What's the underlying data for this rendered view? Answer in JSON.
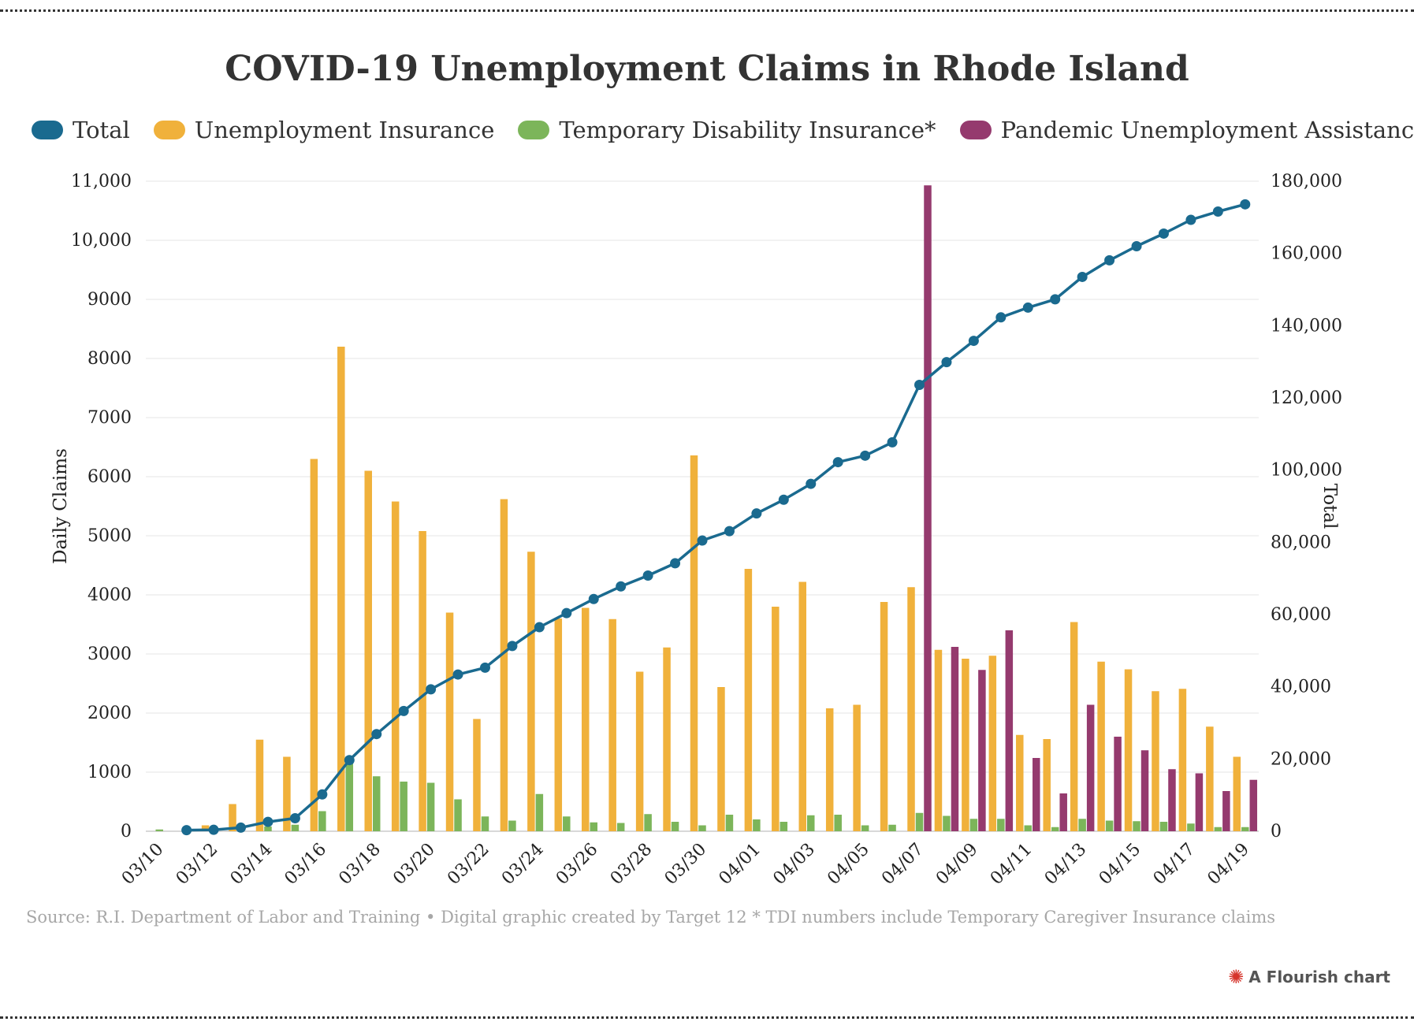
{
  "chart_data": {
    "type": "bar",
    "title": "COVID-19 Unemployment Claims in Rhode Island",
    "ylabel": "Daily Claims",
    "y2label": "Total",
    "ylim": [
      0,
      11000
    ],
    "y2lim": [
      0,
      180000
    ],
    "yticks": [
      "0",
      "1000",
      "2000",
      "3000",
      "4000",
      "5000",
      "6000",
      "7000",
      "8000",
      "9000",
      "10,000",
      "11,000"
    ],
    "y2ticks": [
      "0",
      "20,000",
      "40,000",
      "60,000",
      "80,000",
      "100,000",
      "120,000",
      "140,000",
      "160,000",
      "180,000"
    ],
    "xtick_labels": [
      "03/10",
      "03/12",
      "03/14",
      "03/16",
      "03/18",
      "03/20",
      "03/22",
      "03/24",
      "03/26",
      "03/28",
      "03/30",
      "04/01",
      "04/03",
      "04/05",
      "04/07",
      "04/09",
      "04/11",
      "04/13",
      "04/15",
      "04/17",
      "04/19"
    ],
    "categories": [
      "03/10",
      "03/11",
      "03/12",
      "03/13",
      "03/14",
      "03/15",
      "03/16",
      "03/17",
      "03/18",
      "03/19",
      "03/20",
      "03/21",
      "03/22",
      "03/23",
      "03/24",
      "03/25",
      "03/26",
      "03/27",
      "03/28",
      "03/29",
      "03/30",
      "03/31",
      "04/01",
      "04/02",
      "04/03",
      "04/04",
      "04/05",
      "04/06",
      "04/07",
      "04/08",
      "04/09",
      "04/10",
      "04/11",
      "04/12",
      "04/13",
      "04/14",
      "04/15",
      "04/16",
      "04/17",
      "04/18",
      "04/19"
    ],
    "grid": true,
    "legend_position": "top-left",
    "series": [
      {
        "name": "Total",
        "type": "line",
        "axis": "right",
        "color": "#1a6a8f",
        "values": [
          null,
          300,
          400,
          1000,
          2600,
          3600,
          10200,
          19700,
          26900,
          33300,
          39300,
          43400,
          45300,
          51300,
          56500,
          60400,
          64300,
          67800,
          70800,
          74200,
          80500,
          83100,
          88000,
          91800,
          96200,
          102200,
          104000,
          107700,
          123600,
          129900,
          135800,
          142300,
          145000,
          147300,
          153500,
          158100,
          162000,
          165500,
          169300,
          171600,
          173600
        ]
      },
      {
        "name": "Unemployment Insurance",
        "type": "bar",
        "axis": "left",
        "color": "#f0b13b",
        "values": [
          0,
          0,
          100,
          460,
          1550,
          1260,
          6300,
          8200,
          6100,
          5580,
          5080,
          3700,
          1900,
          5620,
          4730,
          3600,
          3780,
          3590,
          2700,
          3110,
          6360,
          2440,
          4440,
          3800,
          4220,
          2080,
          2140,
          3880,
          4130,
          3070,
          2920,
          2970,
          1630,
          1560,
          3540,
          2870,
          2740,
          2370,
          2410,
          1770,
          1260
        ]
      },
      {
        "name": "Temporary Disability Insurance*",
        "type": "bar",
        "axis": "left",
        "color": "#7cb55a",
        "values": [
          30,
          0,
          0,
          0,
          80,
          110,
          340,
          1180,
          930,
          840,
          820,
          540,
          250,
          180,
          630,
          250,
          150,
          140,
          290,
          160,
          100,
          280,
          200,
          160,
          270,
          280,
          100,
          110,
          310,
          260,
          210,
          210,
          100,
          70,
          210,
          180,
          170,
          160,
          130,
          70,
          70
        ]
      },
      {
        "name": "Pandemic Unemployment Assistance",
        "type": "bar",
        "axis": "left",
        "color": "#953a6e",
        "values": [
          0,
          0,
          0,
          0,
          0,
          0,
          0,
          0,
          0,
          0,
          0,
          0,
          0,
          0,
          0,
          0,
          0,
          0,
          0,
          0,
          0,
          0,
          0,
          0,
          0,
          0,
          0,
          0,
          10930,
          3120,
          2730,
          3400,
          1240,
          640,
          2140,
          1600,
          1370,
          1050,
          980,
          680,
          870
        ]
      }
    ]
  },
  "legend": [
    {
      "label": "Total",
      "color": "#1a6a8f"
    },
    {
      "label": "Unemployment Insurance",
      "color": "#f0b13b"
    },
    {
      "label": "Temporary Disability Insurance*",
      "color": "#7cb55a"
    },
    {
      "label": "Pandemic Unemployment Assistance",
      "color": "#953a6e"
    }
  ],
  "source_note": "Source: R.I. Department of Labor and Training • Digital graphic created by Target 12 * TDI numbers include Temporary Caregiver Insurance claims",
  "credit": "A Flourish chart"
}
